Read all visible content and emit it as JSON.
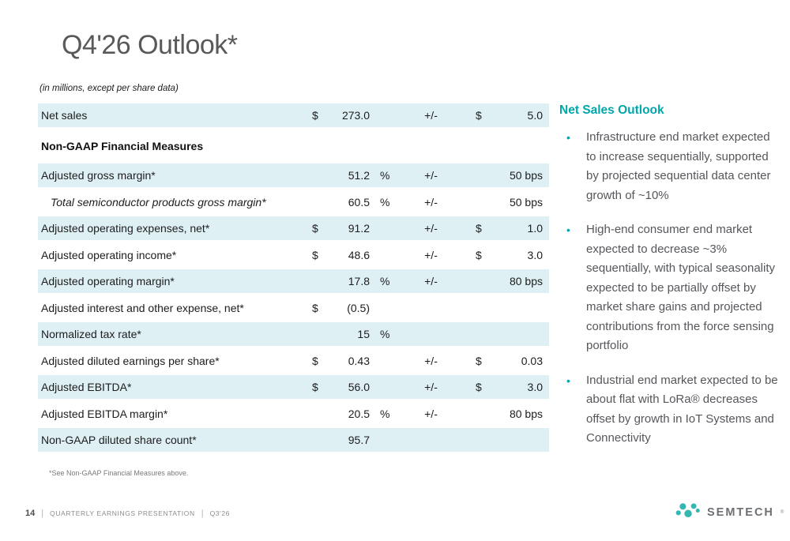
{
  "colors": {
    "accent_teal": "#00a7ab",
    "row_shade": "#def0f3",
    "title_gray": "#58595b",
    "logo_teal": "#34b7b1"
  },
  "header": {
    "title": "Q4'26 Outlook*",
    "subtitle": "(in millions, except per share data)"
  },
  "table": {
    "top_rows": [
      {
        "label": "Net sales",
        "d1": "$",
        "v1": "273.0",
        "pct": "",
        "pm": "+/-",
        "d2": "$",
        "v2": "5.0",
        "shaded": true,
        "italic": false
      }
    ],
    "section_header": "Non-GAAP Financial Measures",
    "rows": [
      {
        "label": "Adjusted gross margin*",
        "d1": "",
        "v1": "51.2",
        "pct": "%",
        "pm": "+/-",
        "d2": "",
        "v2": "50 bps",
        "shaded": true,
        "italic": false
      },
      {
        "label": "Total semiconductor products gross margin*",
        "d1": "",
        "v1": "60.5",
        "pct": "%",
        "pm": "+/-",
        "d2": "",
        "v2": "50 bps",
        "shaded": false,
        "italic": true
      },
      {
        "label": "Adjusted operating expenses, net*",
        "d1": "$",
        "v1": "91.2",
        "pct": "",
        "pm": "+/-",
        "d2": "$",
        "v2": "1.0",
        "shaded": true,
        "italic": false
      },
      {
        "label": "Adjusted operating income*",
        "d1": "$",
        "v1": "48.6",
        "pct": "",
        "pm": "+/-",
        "d2": "$",
        "v2": "3.0",
        "shaded": false,
        "italic": false
      },
      {
        "label": "Adjusted operating margin*",
        "d1": "",
        "v1": "17.8",
        "pct": "%",
        "pm": "+/-",
        "d2": "",
        "v2": "80 bps",
        "shaded": true,
        "italic": false
      },
      {
        "label": "Adjusted interest and other expense, net*",
        "d1": "$",
        "v1": "(0.5)",
        "pct": "",
        "pm": "",
        "d2": "",
        "v2": "",
        "shaded": false,
        "italic": false
      },
      {
        "label": "Normalized tax rate*",
        "d1": "",
        "v1": "15",
        "pct": "%",
        "pm": "",
        "d2": "",
        "v2": "",
        "shaded": true,
        "italic": false
      },
      {
        "label": "Adjusted diluted earnings per share*",
        "d1": "$",
        "v1": "0.43",
        "pct": "",
        "pm": "+/-",
        "d2": "$",
        "v2": "0.03",
        "shaded": false,
        "italic": false
      },
      {
        "label": "Adjusted EBITDA*",
        "d1": "$",
        "v1": "56.0",
        "pct": "",
        "pm": "+/-",
        "d2": "$",
        "v2": "3.0",
        "shaded": true,
        "italic": false
      },
      {
        "label": "Adjusted EBITDA margin*",
        "d1": "",
        "v1": "20.5",
        "pct": "%",
        "pm": "+/-",
        "d2": "",
        "v2": "80 bps",
        "shaded": false,
        "italic": false
      },
      {
        "label": "Non-GAAP diluted share count*",
        "d1": "",
        "v1": "95.7",
        "pct": "",
        "pm": "",
        "d2": "",
        "v2": "",
        "shaded": true,
        "italic": false
      }
    ],
    "footnote": "*See Non-GAAP Financial Measures above."
  },
  "sidebar": {
    "title": "Net Sales Outlook",
    "bullet_glyph": "•",
    "bullets": [
      "Infrastructure end market expected to increase sequentially, supported by projected sequential data center growth of ~10%",
      "High-end consumer end market expected to decrease ~3% sequentially, with typical seasonality expected to be partially offset by market share gains and projected contributions from the force sensing portfolio",
      "Industrial end market expected to be about flat with LoRa® decreases offset by growth in IoT Systems and Connectivity"
    ]
  },
  "footer": {
    "page": "14",
    "separator": "|",
    "presentation": "QUARTERLY EARNINGS PRESENTATION",
    "quarter": "Q3'26",
    "logo_text": "SEMTECH",
    "logo_mark": "®"
  }
}
